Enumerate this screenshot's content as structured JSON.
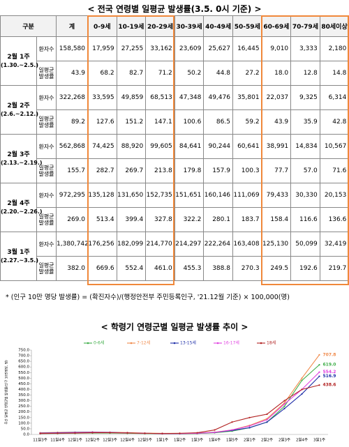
{
  "title": "< 전국 연령별 일평균 발생률(3.5. 0시 기준) >",
  "table": {
    "header": [
      "구분",
      "계",
      "0-9세",
      "10-19세",
      "20-29세",
      "30-39세",
      "40-49세",
      "50-59세",
      "60-69세",
      "70-79세",
      "80세이상"
    ],
    "groups": [
      {
        "label": "2월 1주",
        "period": "(1.30.~2.5.)",
        "rows": [
          {
            "label": "환자수",
            "cells": [
              "158,580",
              "17,959",
              "27,255",
              "33,162",
              "23,609",
              "25,627",
              "16,445",
              "9,010",
              "3,333",
              "2,180"
            ]
          },
          {
            "label": "일평균 발생률",
            "cells": [
              "43.9",
              "68.2",
              "82.7",
              "71.2",
              "50.2",
              "44.8",
              "27.2",
              "18.0",
              "12.8",
              "14.8"
            ]
          }
        ]
      },
      {
        "label": "2월 2주",
        "period": "(2.6.~2.12.)",
        "rows": [
          {
            "label": "환자수",
            "cells": [
              "322,268",
              "33,595",
              "49,859",
              "68,513",
              "47,348",
              "49,476",
              "35,801",
              "22,037",
              "9,325",
              "6,314"
            ]
          },
          {
            "label": "일평균 발생률",
            "cells": [
              "89.2",
              "127.6",
              "151.2",
              "147.1",
              "100.6",
              "86.5",
              "59.2",
              "43.9",
              "35.9",
              "42.8"
            ]
          }
        ]
      },
      {
        "label": "2월 3주",
        "period": "(2.13.~2.19.)",
        "rows": [
          {
            "label": "환자수",
            "cells": [
              "562,868",
              "74,425",
              "88,920",
              "99,605",
              "84,641",
              "90,244",
              "60,641",
              "38,991",
              "14,834",
              "10,567"
            ]
          },
          {
            "label": "일평균 발생률",
            "cells": [
              "155.7",
              "282.7",
              "269.7",
              "213.8",
              "179.8",
              "157.9",
              "100.3",
              "77.7",
              "57.0",
              "71.6"
            ]
          }
        ]
      },
      {
        "label": "2월 4주",
        "period": "(2.20.~2.26.)",
        "rows": [
          {
            "label": "환자수",
            "cells": [
              "972,295",
              "135,128",
              "131,650",
              "152,735",
              "151,651",
              "160,146",
              "111,069",
              "79,433",
              "30,330",
              "20,153"
            ]
          },
          {
            "label": "일평균 발생률",
            "cells": [
              "269.0",
              "513.4",
              "399.4",
              "327.8",
              "322.2",
              "280.1",
              "183.7",
              "158.4",
              "116.6",
              "136.6"
            ]
          }
        ]
      },
      {
        "label": "3월 1주",
        "period": "(2.27.~3.5.)",
        "rows": [
          {
            "label": "환자수",
            "cells": [
              "1,380,742",
              "176,256",
              "182,099",
              "214,770",
              "214,297",
              "222,264",
              "163,408",
              "125,130",
              "50,099",
              "32,419"
            ]
          },
          {
            "label": "일평균 발생률",
            "cells": [
              "382.0",
              "669.6",
              "552.4",
              "461.0",
              "455.3",
              "388.8",
              "270.3",
              "249.5",
              "192.6",
              "219.7"
            ]
          }
        ]
      }
    ]
  },
  "footnote": "* (인구 10만 명당 발생률) = (확진자수)/(행정안전부 주민등록인구, '21.12월 기준) × 100,000(명)",
  "chart_data": {
    "type": "line",
    "title": "< 학령기 연령군별 일평균 발생률 추이 >",
    "y_label": "주간 일평균 연령군별 발생률(인구 10만명당, 명)",
    "categories": [
      "11월3주",
      "11월4주",
      "12월1주",
      "12월2주",
      "12월3주",
      "12월4주",
      "12월5주",
      "1월1주",
      "1월2주",
      "1월3주",
      "1월4주",
      "1월5주",
      "2월1주",
      "2월2주",
      "2월3주",
      "2월4주",
      "3월1주"
    ],
    "ylim": [
      0,
      750
    ],
    "yticks": [
      {
        "value": 0,
        "label": "0.0"
      },
      {
        "value": 50,
        "label": "50.0"
      },
      {
        "value": 100,
        "label": "100.0"
      },
      {
        "value": 150,
        "label": "150.0"
      },
      {
        "value": 200,
        "label": "200.0"
      },
      {
        "value": 250,
        "label": "250.0"
      },
      {
        "value": 300,
        "label": "300.0"
      },
      {
        "value": 350,
        "label": "350.0"
      },
      {
        "value": 400,
        "label": "400.0"
      },
      {
        "value": 450,
        "label": "450.0"
      },
      {
        "value": 500,
        "label": "500.0"
      },
      {
        "value": 550,
        "label": "550.0"
      },
      {
        "value": 600,
        "label": "600.0"
      },
      {
        "value": 650,
        "label": "650.0"
      },
      {
        "value": 700,
        "label": "700.0"
      },
      {
        "value": 750,
        "label": "750.0"
      }
    ],
    "series": [
      {
        "name": "0-6세",
        "color": "#3fae49",
        "values": [
          8,
          9,
          10,
          12,
          12,
          10,
          8,
          8,
          7,
          8,
          15,
          30,
          60,
          110,
          250,
          480,
          619.0
        ],
        "value_labels": [
          null,
          null,
          null,
          null,
          null,
          null,
          null,
          null,
          null,
          null,
          null,
          null,
          null,
          null,
          null,
          null,
          "619.0"
        ]
      },
      {
        "name": "7-12세",
        "color": "#f08a4b",
        "values": [
          15,
          18,
          20,
          22,
          20,
          17,
          12,
          10,
          10,
          12,
          20,
          40,
          80,
          140,
          280,
          500,
          707.8
        ],
        "value_labels": [
          null,
          null,
          null,
          null,
          null,
          null,
          null,
          null,
          null,
          null,
          null,
          null,
          null,
          null,
          null,
          null,
          "707.8"
        ]
      },
      {
        "name": "13-15세",
        "color": "#1f2fa8",
        "values": [
          12,
          15,
          18,
          20,
          18,
          14,
          10,
          8,
          8,
          10,
          18,
          35,
          60,
          110,
          230,
          360,
          516.9
        ],
        "value_labels": [
          null,
          null,
          null,
          null,
          null,
          null,
          null,
          null,
          null,
          null,
          null,
          null,
          null,
          null,
          null,
          null,
          "516.9"
        ]
      },
      {
        "name": "16-17세",
        "color": "#e040e0",
        "values": [
          10,
          12,
          15,
          18,
          17,
          14,
          10,
          8,
          8,
          10,
          18,
          40,
          75,
          130,
          270,
          400,
          554.2
        ],
        "value_labels": [
          null,
          null,
          null,
          null,
          null,
          null,
          null,
          null,
          null,
          null,
          null,
          null,
          null,
          null,
          null,
          null,
          "554.2"
        ]
      },
      {
        "name": "18세",
        "color": "#b22222",
        "values": [
          8,
          10,
          12,
          15,
          15,
          13,
          10,
          8,
          10,
          15,
          40,
          110,
          150,
          180,
          300,
          400,
          438.6
        ],
        "value_labels": [
          null,
          null,
          null,
          null,
          null,
          null,
          null,
          null,
          null,
          null,
          null,
          null,
          null,
          null,
          null,
          null,
          "438.6"
        ]
      }
    ]
  }
}
